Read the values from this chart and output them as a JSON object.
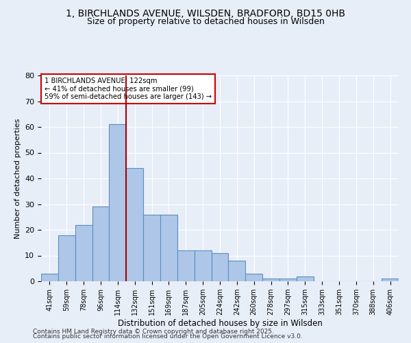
{
  "title1": "1, BIRCHLANDS AVENUE, WILSDEN, BRADFORD, BD15 0HB",
  "title2": "Size of property relative to detached houses in Wilsden",
  "xlabel": "Distribution of detached houses by size in Wilsden",
  "ylabel": "Number of detached properties",
  "categories": [
    "41sqm",
    "59sqm",
    "78sqm",
    "96sqm",
    "114sqm",
    "132sqm",
    "151sqm",
    "169sqm",
    "187sqm",
    "205sqm",
    "224sqm",
    "242sqm",
    "260sqm",
    "278sqm",
    "297sqm",
    "315sqm",
    "333sqm",
    "351sqm",
    "370sqm",
    "388sqm",
    "406sqm"
  ],
  "values": [
    3,
    18,
    22,
    29,
    61,
    44,
    26,
    26,
    12,
    12,
    11,
    8,
    3,
    1,
    1,
    2,
    0,
    0,
    0,
    0,
    1
  ],
  "bar_color": "#aec6e8",
  "bar_edge_color": "#5a8fc0",
  "vline_x": 4.5,
  "vline_color": "#aa0000",
  "annotation_text": "1 BIRCHLANDS AVENUE: 122sqm\n← 41% of detached houses are smaller (99)\n59% of semi-detached houses are larger (143) →",
  "annotation_box_color": "#ffffff",
  "annotation_box_edge_color": "#cc0000",
  "ylim": [
    0,
    80
  ],
  "yticks": [
    0,
    10,
    20,
    30,
    40,
    50,
    60,
    70,
    80
  ],
  "background_color": "#e8eef8",
  "footer_line1": "Contains HM Land Registry data © Crown copyright and database right 2025.",
  "footer_line2": "Contains public sector information licensed under the Open Government Licence v3.0.",
  "title1_fontsize": 10,
  "title2_fontsize": 9
}
